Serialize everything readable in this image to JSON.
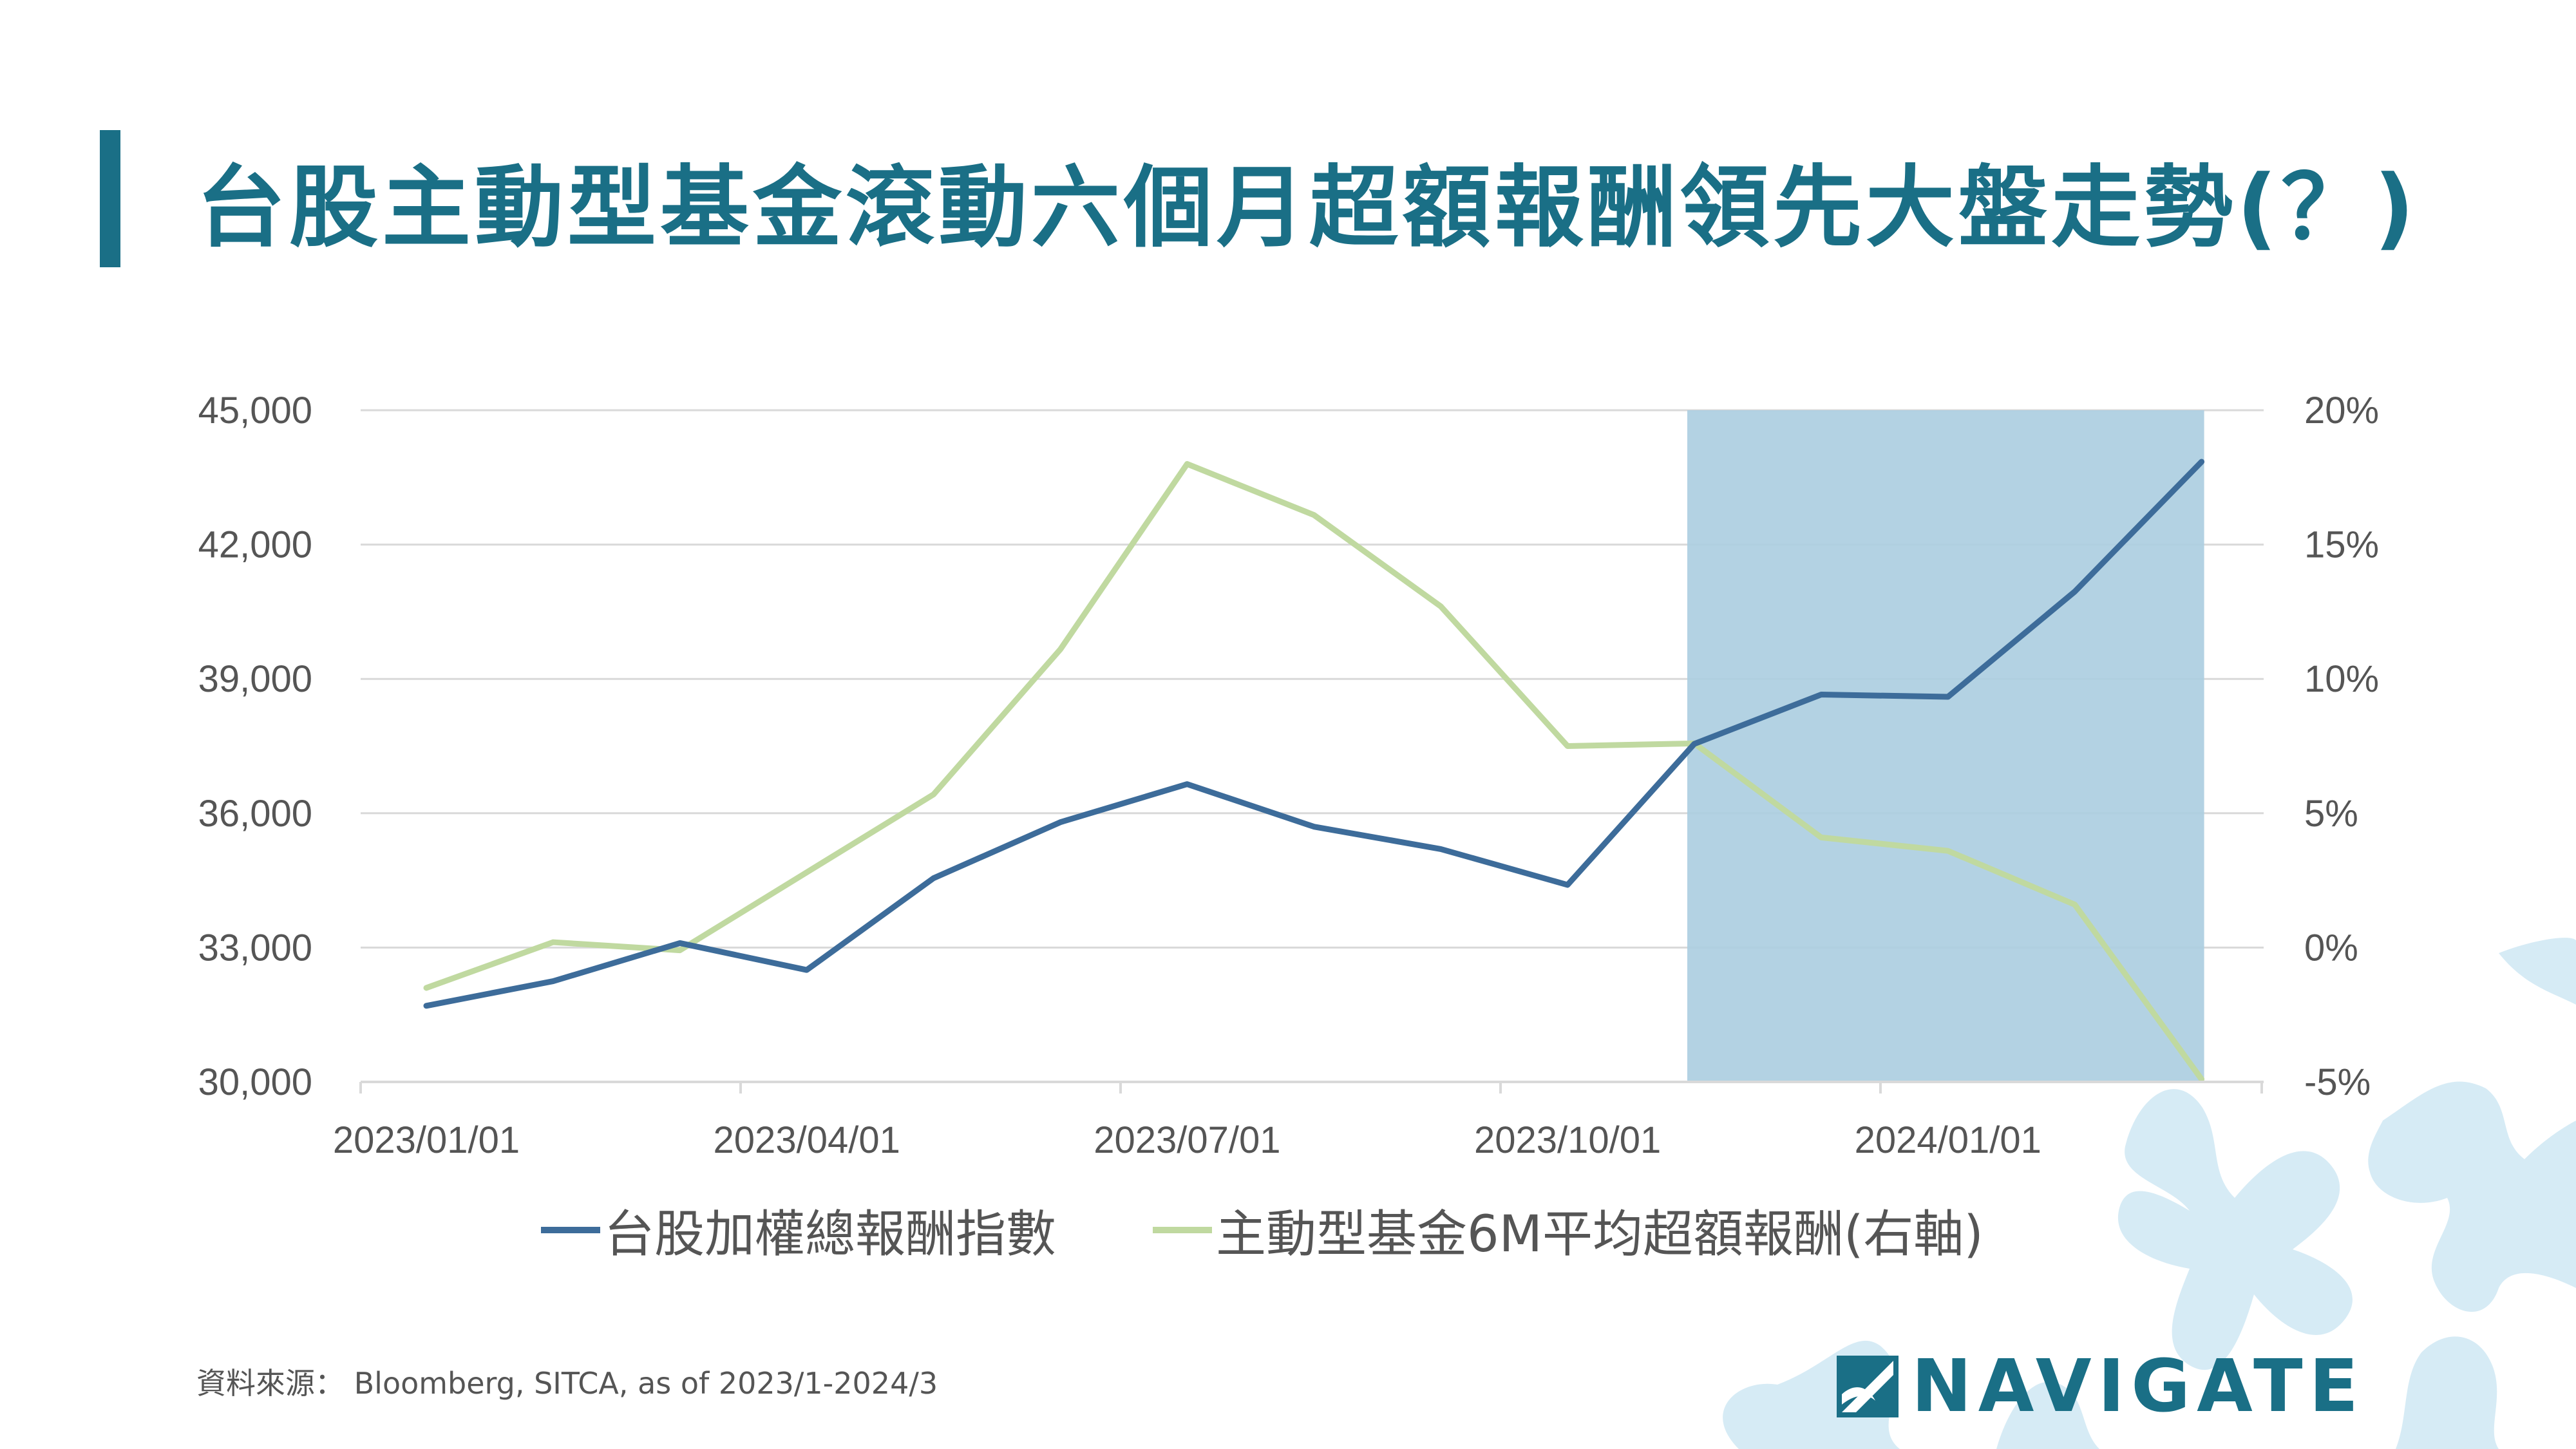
{
  "title": "台股主動型基金滾動六個月超額報酬領先大盤走勢(？)",
  "source": "資料來源： Bloomberg,  SITCA,  as of 2023/1-2024/3",
  "logo_text": "NAVIGATE",
  "colors": {
    "brand": "#1a6f86",
    "index_line": "#3d6c9a",
    "fund_line": "#c0d9a0",
    "highlight": "#abcde0"
  },
  "chart_data": {
    "type": "line",
    "title": "台股主動型基金滾動六個月超額報酬領先大盤走勢(？)",
    "x": [
      "2023/01",
      "2023/02",
      "2023/03",
      "2023/04",
      "2023/05",
      "2023/06",
      "2023/07",
      "2023/08",
      "2023/09",
      "2023/10",
      "2023/11",
      "2023/12",
      "2024/01",
      "2024/02",
      "2024/03"
    ],
    "x_tick_labels": [
      "2023/01/01",
      "2023/04/01",
      "2023/07/01",
      "2023/10/01",
      "2024/01/01"
    ],
    "y_left_ticks": [
      "30,000",
      "33,000",
      "36,000",
      "39,000",
      "42,000",
      "45,000"
    ],
    "y_left_range": [
      30000,
      45000
    ],
    "y_right_ticks": [
      "-5%",
      "0%",
      "5%",
      "10%",
      "15%",
      "20%"
    ],
    "y_right_range": [
      -5,
      20
    ],
    "series": [
      {
        "name": "台股加權總報酬指數",
        "axis": "left",
        "color": "#3d6c9a",
        "values": [
          31700,
          32250,
          33100,
          32500,
          34550,
          35800,
          36650,
          35700,
          35200,
          34400,
          37550,
          38650,
          38600,
          40950,
          43850
        ]
      },
      {
        "name": "主動型基金6M平均超額報酬(右軸)",
        "axis": "right",
        "color": "#c0d9a0",
        "values": [
          -1.5,
          0.2,
          -0.1,
          2.8,
          5.7,
          11.1,
          18.0,
          16.1,
          12.7,
          7.5,
          7.6,
          4.1,
          3.6,
          1.6,
          -4.9
        ]
      }
    ],
    "highlight_range": [
      "2023/11",
      "2024/03"
    ],
    "legend_position": "bottom",
    "grid": true
  }
}
